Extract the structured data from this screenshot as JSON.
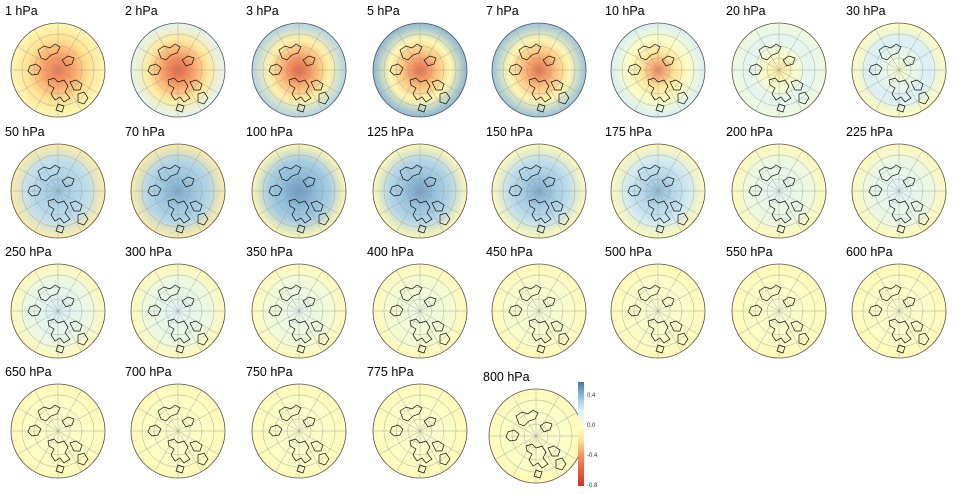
{
  "figure": {
    "projection": "north-polar-stereographic",
    "colormap": {
      "name": "RdYlBu",
      "low_color": "#d73027",
      "mid_color": "#ffffbf",
      "high_color": "#4575b4"
    }
  },
  "colorbar": {
    "min": -0.8,
    "max": 0.6,
    "ticks": [
      {
        "value": 0.4,
        "label": "0.4"
      },
      {
        "value": 0.0,
        "label": "0.0"
      },
      {
        "value": -0.4,
        "label": "-0.4"
      },
      {
        "value": -0.8,
        "label": "-0.8"
      }
    ]
  },
  "panels": [
    {
      "label": "1 hPa",
      "center": -0.55,
      "edge": -0.05,
      "ring": 0.22
    },
    {
      "label": "2 hPa",
      "center": -0.65,
      "edge": 0.18,
      "ring": 0.2
    },
    {
      "label": "3 hPa",
      "center": -0.65,
      "edge": 0.32,
      "ring": 0.15
    },
    {
      "label": "5 hPa",
      "center": -0.62,
      "edge": 0.42,
      "ring": 0.1
    },
    {
      "label": "7 hPa",
      "center": -0.6,
      "edge": 0.38,
      "ring": 0.1
    },
    {
      "label": "10 hPa",
      "center": -0.45,
      "edge": 0.22,
      "ring": 0.28
    },
    {
      "label": "20 hPa",
      "center": -0.15,
      "edge": 0.1,
      "ring": 0.4
    },
    {
      "label": "30 hPa",
      "center": 0.05,
      "edge": -0.02,
      "ring": 0.4
    },
    {
      "label": "50 hPa",
      "center": 0.38,
      "edge": -0.12,
      "ring": 0.3
    },
    {
      "label": "70 hPa",
      "center": 0.45,
      "edge": -0.12,
      "ring": 0.3
    },
    {
      "label": "100 hPa",
      "center": 0.5,
      "edge": -0.06,
      "ring": 0.25
    },
    {
      "label": "125 hPa",
      "center": 0.48,
      "edge": -0.05,
      "ring": 0.2
    },
    {
      "label": "150 hPa",
      "center": 0.45,
      "edge": -0.04,
      "ring": 0.15
    },
    {
      "label": "175 hPa",
      "center": 0.4,
      "edge": -0.04,
      "ring": 0.12
    },
    {
      "label": "200 hPa",
      "center": 0.18,
      "edge": -0.04,
      "ring": 0.1
    },
    {
      "label": "225 hPa",
      "center": 0.2,
      "edge": -0.04,
      "ring": 0.1
    },
    {
      "label": "250 hPa",
      "center": 0.22,
      "edge": -0.04,
      "ring": 0.08
    },
    {
      "label": "300 hPa",
      "center": 0.2,
      "edge": -0.04,
      "ring": 0.08
    },
    {
      "label": "350 hPa",
      "center": 0.16,
      "edge": -0.04,
      "ring": 0.06
    },
    {
      "label": "400 hPa",
      "center": 0.12,
      "edge": -0.04,
      "ring": 0.06
    },
    {
      "label": "450 hPa",
      "center": 0.08,
      "edge": -0.04,
      "ring": 0.05
    },
    {
      "label": "500 hPa",
      "center": 0.06,
      "edge": -0.04,
      "ring": 0.05
    },
    {
      "label": "550 hPa",
      "center": 0.05,
      "edge": -0.04,
      "ring": 0.04
    },
    {
      "label": "600 hPa",
      "center": 0.05,
      "edge": -0.04,
      "ring": 0.04
    },
    {
      "label": "650 hPa",
      "center": 0.04,
      "edge": -0.04,
      "ring": 0.04
    },
    {
      "label": "700 hPa",
      "center": 0.04,
      "edge": -0.04,
      "ring": 0.04
    },
    {
      "label": "750 hPa",
      "center": 0.05,
      "edge": -0.04,
      "ring": 0.04
    },
    {
      "label": "775 hPa",
      "center": 0.05,
      "edge": -0.04,
      "ring": 0.04
    },
    {
      "label": "800 hPa",
      "center": 0.05,
      "edge": -0.04,
      "ring": 0.04
    }
  ]
}
